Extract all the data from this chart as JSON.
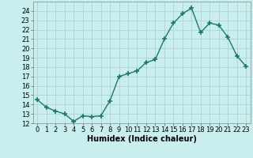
{
  "x": [
    0,
    1,
    2,
    3,
    4,
    5,
    6,
    7,
    8,
    9,
    10,
    11,
    12,
    13,
    14,
    15,
    16,
    17,
    18,
    19,
    20,
    21,
    22,
    23
  ],
  "y": [
    14.5,
    13.7,
    13.3,
    13.0,
    12.2,
    12.8,
    12.7,
    12.8,
    14.4,
    17.0,
    17.3,
    17.6,
    18.5,
    18.8,
    21.0,
    22.7,
    23.7,
    24.3,
    21.7,
    22.7,
    22.5,
    21.2,
    19.2,
    18.1
  ],
  "line_color": "#1a7a6a",
  "marker": "+",
  "markersize": 4,
  "markeredgewidth": 1.2,
  "bg_color": "#c8eeee",
  "grid_color": "#aacccc",
  "xlabel": "Humidex (Indice chaleur)",
  "ylim": [
    12,
    25
  ],
  "xlim": [
    -0.5,
    23.5
  ],
  "yticks": [
    12,
    13,
    14,
    15,
    16,
    17,
    18,
    19,
    20,
    21,
    22,
    23,
    24
  ],
  "xticks": [
    0,
    1,
    2,
    3,
    4,
    5,
    6,
    7,
    8,
    9,
    10,
    11,
    12,
    13,
    14,
    15,
    16,
    17,
    18,
    19,
    20,
    21,
    22,
    23
  ],
  "xlabel_fontsize": 7,
  "tick_fontsize": 6,
  "linewidth": 1.0
}
